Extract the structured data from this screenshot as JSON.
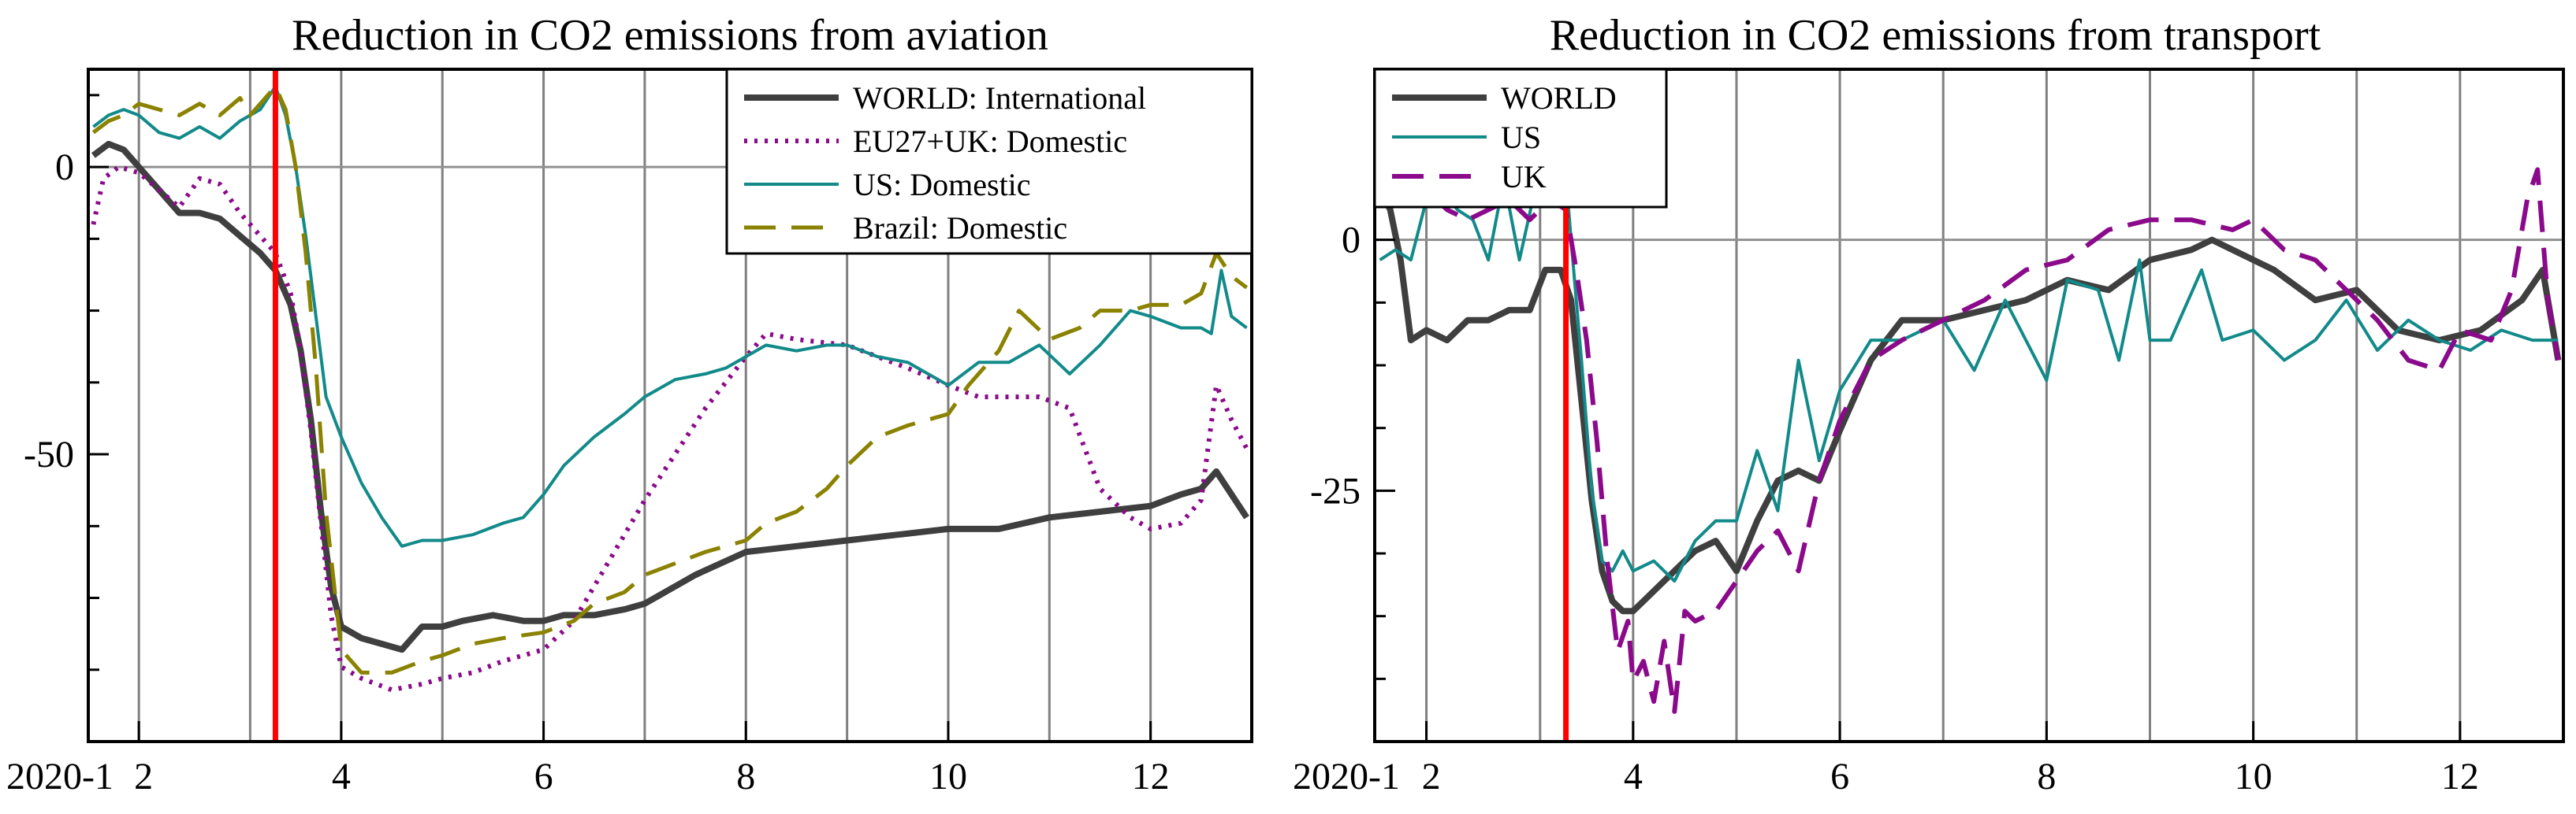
{
  "colors": {
    "world": "#3f3f3f",
    "eu": "#8b0a8b",
    "us": "#128a8a",
    "brazil": "#8a8200",
    "uk": "#8b0a8b",
    "marker": "#ff0000",
    "grid": "#808080",
    "zero": "#909090"
  },
  "chart_data": [
    {
      "type": "line",
      "title": "Reduction in CO2 emissions from aviation",
      "xlabel": "",
      "ylabel": "",
      "xlim": [
        1.5,
        13
      ],
      "ylim": [
        -100,
        17
      ],
      "yticks": [
        0,
        -50
      ],
      "ytick_labels": [
        "0",
        "-50"
      ],
      "xticks": [
        2,
        4,
        6,
        8,
        10,
        12
      ],
      "xtick_labels": [
        "2",
        "4",
        "6",
        "8",
        "10",
        "12"
      ],
      "year_label": "2020-1",
      "vline_x": 3.35,
      "legend_position": "top-right",
      "series": [
        {
          "name": "WORLD: International",
          "key": "world",
          "dash": "solid",
          "width": 8,
          "x": [
            1.55,
            1.7,
            1.85,
            2.0,
            2.2,
            2.4,
            2.6,
            2.8,
            3.0,
            3.2,
            3.35,
            3.5,
            3.6,
            3.7,
            3.8,
            3.9,
            4.0,
            4.2,
            4.4,
            4.6,
            4.8,
            5.0,
            5.2,
            5.5,
            5.8,
            6.0,
            6.2,
            6.5,
            6.8,
            7.0,
            7.2,
            7.5,
            8.0,
            8.5,
            9.0,
            9.5,
            10.0,
            10.5,
            11.0,
            11.5,
            12.0,
            12.3,
            12.5,
            12.65,
            12.8,
            12.95
          ],
          "y": [
            2,
            4,
            3,
            0,
            -4,
            -8,
            -8,
            -9,
            -12,
            -15,
            -18,
            -24,
            -32,
            -44,
            -60,
            -73,
            -80,
            -82,
            -83,
            -84,
            -80,
            -80,
            -79,
            -78,
            -79,
            -79,
            -78,
            -78,
            -77,
            -76,
            -74,
            -71,
            -67,
            -66,
            -65,
            -64,
            -63,
            -63,
            -61,
            -60,
            -59,
            -57,
            -56,
            -53,
            -57,
            -61
          ]
        },
        {
          "name": "EU27+UK: Domestic",
          "key": "eu",
          "dash": "dotted",
          "width": 6,
          "x": [
            1.55,
            1.65,
            1.8,
            2.0,
            2.2,
            2.4,
            2.6,
            2.8,
            3.0,
            3.2,
            3.35,
            3.5,
            3.6,
            3.7,
            3.8,
            3.9,
            4.0,
            4.2,
            4.5,
            4.8,
            5.0,
            5.3,
            5.6,
            6.0,
            6.3,
            6.5,
            6.8,
            7.0,
            7.3,
            7.6,
            8.0,
            8.2,
            8.5,
            9.0,
            9.3,
            9.6,
            10.0,
            10.3,
            10.6,
            10.9,
            11.2,
            11.5,
            11.8,
            12.0,
            12.3,
            12.5,
            12.65,
            12.8,
            12.95
          ],
          "y": [
            -10,
            -2,
            0,
            -1,
            -4,
            -7,
            -2,
            -3,
            -8,
            -12,
            -15,
            -22,
            -32,
            -46,
            -62,
            -78,
            -87,
            -89,
            -91,
            -90,
            -89,
            -88,
            -86,
            -84,
            -79,
            -73,
            -64,
            -58,
            -50,
            -42,
            -33,
            -29,
            -30,
            -31,
            -33,
            -35,
            -38,
            -40,
            -40,
            -40,
            -42,
            -56,
            -61,
            -63,
            -62,
            -58,
            -38,
            -44,
            -49
          ]
        },
        {
          "name": "US: Domestic",
          "key": "us",
          "dash": "solid",
          "width": 4,
          "x": [
            1.55,
            1.7,
            1.85,
            2.0,
            2.2,
            2.4,
            2.6,
            2.8,
            3.0,
            3.2,
            3.35,
            3.45,
            3.55,
            3.65,
            3.75,
            3.85,
            4.0,
            4.2,
            4.4,
            4.6,
            4.8,
            5.0,
            5.3,
            5.6,
            5.8,
            6.0,
            6.2,
            6.5,
            6.8,
            7.0,
            7.3,
            7.6,
            7.8,
            8.0,
            8.2,
            8.5,
            8.8,
            9.0,
            9.3,
            9.6,
            10.0,
            10.3,
            10.6,
            10.9,
            11.2,
            11.5,
            11.8,
            12.0,
            12.3,
            12.5,
            12.6,
            12.7,
            12.8,
            12.95
          ],
          "y": [
            7,
            9,
            10,
            9,
            6,
            5,
            7,
            5,
            8,
            10,
            14,
            9,
            0,
            -12,
            -26,
            -40,
            -47,
            -55,
            -61,
            -66,
            -65,
            -65,
            -64,
            -62,
            -61,
            -57,
            -52,
            -47,
            -43,
            -40,
            -37,
            -36,
            -35,
            -33,
            -31,
            -32,
            -31,
            -31,
            -33,
            -34,
            -38,
            -34,
            -34,
            -31,
            -36,
            -31,
            -25,
            -26,
            -28,
            -28,
            -29,
            -18,
            -26,
            -28
          ]
        },
        {
          "name": "Brazil: Domestic",
          "key": "brazil",
          "dash": "dashed",
          "width": 5,
          "x": [
            1.55,
            1.7,
            1.85,
            2.0,
            2.2,
            2.4,
            2.6,
            2.8,
            3.0,
            3.1,
            3.2,
            3.35,
            3.45,
            3.55,
            3.65,
            3.75,
            3.85,
            4.0,
            4.2,
            4.5,
            4.8,
            5.0,
            5.3,
            5.6,
            6.0,
            6.3,
            6.5,
            6.8,
            7.0,
            7.3,
            7.6,
            8.0,
            8.2,
            8.5,
            8.8,
            9.0,
            9.3,
            9.6,
            10.0,
            10.2,
            10.5,
            10.7,
            11.0,
            11.3,
            11.5,
            11.8,
            12.0,
            12.3,
            12.5,
            12.65,
            12.8,
            12.95
          ],
          "y": [
            6,
            8,
            9,
            11,
            10,
            9,
            11,
            9,
            12,
            9,
            11,
            14,
            10,
            0,
            -15,
            -35,
            -60,
            -84,
            -88,
            -88,
            -86,
            -85,
            -83,
            -82,
            -81,
            -79,
            -76,
            -74,
            -71,
            -69,
            -67,
            -65,
            -62,
            -60,
            -56,
            -52,
            -47,
            -45,
            -43,
            -38,
            -32,
            -25,
            -30,
            -28,
            -25,
            -25,
            -24,
            -24,
            -22,
            -15,
            -19,
            -21
          ]
        }
      ]
    },
    {
      "type": "line",
      "title": "Reduction in CO2 emissions from transport",
      "xlabel": "",
      "ylabel": "",
      "xlim": [
        1.5,
        13
      ],
      "ylim": [
        -50,
        17
      ],
      "yticks": [
        0,
        -25
      ],
      "ytick_labels": [
        "0",
        "-25"
      ],
      "xticks": [
        2,
        4,
        6,
        8,
        10,
        12
      ],
      "xtick_labels": [
        "2",
        "4",
        "6",
        "8",
        "10",
        "12"
      ],
      "year_label": "2020-1",
      "vline_x": 3.35,
      "legend_position": "top-left",
      "series": [
        {
          "name": "WORLD",
          "key": "world",
          "dash": "solid",
          "width": 8,
          "x": [
            1.55,
            1.65,
            1.75,
            1.85,
            2.0,
            2.2,
            2.4,
            2.6,
            2.8,
            3.0,
            3.15,
            3.3,
            3.4,
            3.5,
            3.6,
            3.7,
            3.8,
            3.9,
            4.0,
            4.2,
            4.4,
            4.6,
            4.8,
            5.0,
            5.2,
            5.4,
            5.6,
            5.8,
            6.0,
            6.3,
            6.6,
            7.0,
            7.4,
            7.8,
            8.2,
            8.6,
            9.0,
            9.4,
            9.6,
            9.8,
            10.2,
            10.6,
            11.0,
            11.4,
            11.8,
            12.2,
            12.6,
            12.8,
            12.95
          ],
          "y": [
            5,
            3,
            -2,
            -10,
            -9,
            -10,
            -8,
            -8,
            -7,
            -7,
            -3,
            -3,
            -6,
            -16,
            -26,
            -33,
            -36,
            -37,
            -37,
            -35,
            -33,
            -31,
            -30,
            -33,
            -28,
            -24,
            -23,
            -24,
            -19,
            -12,
            -8,
            -8,
            -7,
            -6,
            -4,
            -5,
            -2,
            -1,
            0,
            -1,
            -3,
            -6,
            -5,
            -9,
            -10,
            -9,
            -6,
            -3,
            -12
          ]
        },
        {
          "name": "US",
          "key": "us",
          "dash": "solid",
          "width": 4,
          "x": [
            1.55,
            1.7,
            1.85,
            2.0,
            2.15,
            2.3,
            2.45,
            2.6,
            2.75,
            2.9,
            3.05,
            3.2,
            3.3,
            3.4,
            3.5,
            3.6,
            3.7,
            3.8,
            3.9,
            4.0,
            4.2,
            4.4,
            4.6,
            4.8,
            5.0,
            5.2,
            5.4,
            5.6,
            5.8,
            6.0,
            6.3,
            6.6,
            7.0,
            7.3,
            7.6,
            7.8,
            8.0,
            8.2,
            8.5,
            8.7,
            8.9,
            9.0,
            9.2,
            9.5,
            9.7,
            10.0,
            10.3,
            10.6,
            10.9,
            11.2,
            11.5,
            11.8,
            12.1,
            12.4,
            12.7,
            12.95
          ],
          "y": [
            -2,
            -1,
            -2,
            4,
            5,
            3,
            2,
            -2,
            6,
            -2,
            5,
            6,
            13,
            0,
            -12,
            -25,
            -32,
            -33,
            -31,
            -33,
            -32,
            -34,
            -30,
            -28,
            -28,
            -21,
            -27,
            -12,
            -22,
            -15,
            -10,
            -10,
            -8,
            -13,
            -6,
            -10,
            -14,
            -4,
            -5,
            -12,
            -2,
            -10,
            -10,
            -3,
            -10,
            -9,
            -12,
            -10,
            -6,
            -11,
            -8,
            -10,
            -11,
            -9,
            -10,
            -10
          ]
        },
        {
          "name": "UK",
          "key": "uk",
          "dash": "dashed",
          "width": 6,
          "x": [
            1.55,
            1.65,
            1.75,
            1.9,
            2.0,
            2.2,
            2.4,
            2.6,
            2.8,
            3.0,
            3.2,
            3.35,
            3.45,
            3.55,
            3.65,
            3.75,
            3.85,
            3.95,
            4.0,
            4.1,
            4.2,
            4.3,
            4.4,
            4.5,
            4.6,
            4.8,
            5.0,
            5.2,
            5.4,
            5.6,
            5.8,
            6.0,
            6.3,
            6.6,
            7.0,
            7.4,
            7.8,
            8.2,
            8.6,
            9.0,
            9.4,
            9.8,
            10.0,
            10.3,
            10.6,
            10.9,
            11.2,
            11.5,
            11.8,
            12.0,
            12.3,
            12.5,
            12.65,
            12.75,
            12.85,
            12.95
          ],
          "y": [
            9,
            5,
            4,
            4,
            5,
            3,
            2,
            3,
            4,
            2,
            4,
            3,
            -3,
            -10,
            -20,
            -32,
            -41,
            -38,
            -44,
            -42,
            -46,
            -40,
            -47,
            -37,
            -38,
            -37,
            -34,
            -31,
            -29,
            -33,
            -24,
            -18,
            -12,
            -10,
            -8,
            -6,
            -3,
            -2,
            1,
            2,
            2,
            1,
            2,
            -1,
            -2,
            -5,
            -8,
            -12,
            -13,
            -9,
            -10,
            -5,
            4,
            7,
            -6,
            -12
          ]
        }
      ]
    }
  ]
}
